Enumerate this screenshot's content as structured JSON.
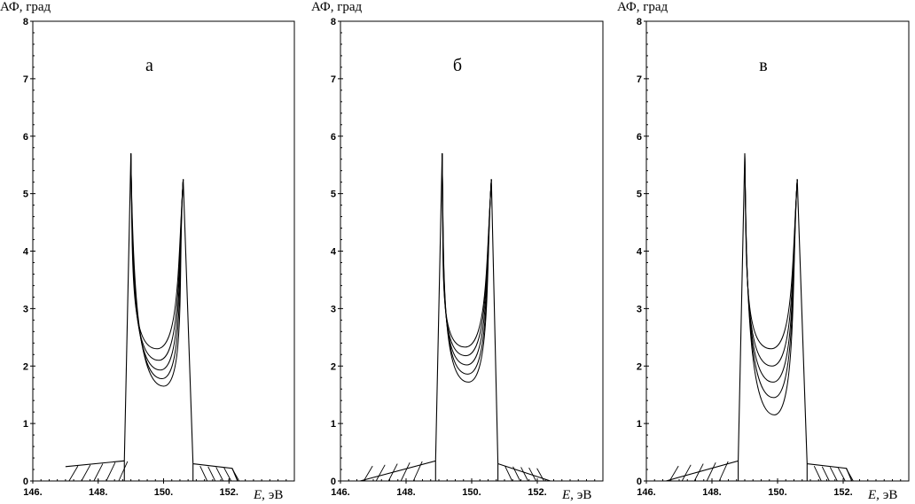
{
  "chart_data": [
    {
      "type": "line",
      "panel_label": "а",
      "ylabel": "АФ,  град",
      "xlabel_var": "E,",
      "xlabel_unit": "эВ",
      "xlim": [
        146.0,
        154.0
      ],
      "ylim": [
        0,
        8
      ],
      "xticks": [
        146,
        148,
        150,
        152
      ],
      "xtick_labels": [
        "146.",
        "148.",
        "150.",
        "152."
      ],
      "yticks": [
        0,
        1,
        2,
        3,
        4,
        5,
        6,
        7,
        8
      ],
      "ytick_labels": [
        "0",
        "1",
        "2",
        "3",
        "4",
        "5",
        "6",
        "7",
        "8"
      ],
      "peak1": {
        "x": 149.0,
        "y": 5.7
      },
      "peak2": {
        "x": 150.6,
        "y": 5.25
      },
      "left_edge": {
        "x": 148.8,
        "y": 0.35
      },
      "right_edge": {
        "x": 150.9,
        "y": 0.3
      },
      "left_tail_start": {
        "x": 147.0,
        "y": 0.25
      },
      "right_tail_end": {
        "x": 152.1,
        "y": 0.22
      },
      "curve_minima": [
        {
          "x": 149.8,
          "y": 2.3
        },
        {
          "x": 149.85,
          "y": 2.1
        },
        {
          "x": 149.9,
          "y": 1.93
        },
        {
          "x": 149.95,
          "y": 1.78
        },
        {
          "x": 150.0,
          "y": 1.65
        }
      ]
    },
    {
      "type": "line",
      "panel_label": "б",
      "ylabel": "АФ,  град",
      "xlabel_var": "E,",
      "xlabel_unit": "эВ",
      "xlim": [
        146.0,
        154.0
      ],
      "ylim": [
        0,
        8
      ],
      "xticks": [
        146,
        148,
        150,
        152
      ],
      "xtick_labels": [
        "146.",
        "148.",
        "150.",
        "152."
      ],
      "yticks": [
        0,
        1,
        2,
        3,
        4,
        5,
        6,
        7,
        8
      ],
      "ytick_labels": [
        "0",
        "1",
        "2",
        "3",
        "4",
        "5",
        "6",
        "7",
        "8"
      ],
      "peak1": {
        "x": 149.1,
        "y": 5.7
      },
      "peak2": {
        "x": 150.6,
        "y": 5.25
      },
      "left_edge": {
        "x": 148.9,
        "y": 0.35
      },
      "right_edge": {
        "x": 150.8,
        "y": 0.3
      },
      "left_tail_start": {
        "x": 146.6,
        "y": 0.0
      },
      "right_tail_end": {
        "x": 152.4,
        "y": 0.0
      },
      "curve_minima": [
        {
          "x": 149.8,
          "y": 2.33
        },
        {
          "x": 149.82,
          "y": 2.18
        },
        {
          "x": 149.85,
          "y": 2.02
        },
        {
          "x": 149.88,
          "y": 1.86
        },
        {
          "x": 149.9,
          "y": 1.72
        }
      ]
    },
    {
      "type": "line",
      "panel_label": "в",
      "ylabel": "АФ,  град",
      "xlabel_var": "E,",
      "xlabel_unit": "эВ",
      "xlim": [
        146.0,
        154.0
      ],
      "ylim": [
        0,
        8
      ],
      "xticks": [
        146,
        148,
        150,
        152
      ],
      "xtick_labels": [
        "146.",
        "148.",
        "150.",
        "152."
      ],
      "yticks": [
        0,
        1,
        2,
        3,
        4,
        5,
        6,
        7,
        8
      ],
      "ytick_labels": [
        "0",
        "1",
        "2",
        "3",
        "4",
        "5",
        "6",
        "7",
        "8"
      ],
      "peak1": {
        "x": 149.0,
        "y": 5.7
      },
      "peak2": {
        "x": 150.6,
        "y": 5.25
      },
      "left_edge": {
        "x": 148.8,
        "y": 0.35
      },
      "right_edge": {
        "x": 150.9,
        "y": 0.3
      },
      "left_tail_start": {
        "x": 146.6,
        "y": 0.0
      },
      "right_tail_end": {
        "x": 152.1,
        "y": 0.22
      },
      "curve_minima": [
        {
          "x": 149.8,
          "y": 2.3
        },
        {
          "x": 149.83,
          "y": 2.0
        },
        {
          "x": 149.86,
          "y": 1.72
        },
        {
          "x": 149.88,
          "y": 1.45
        },
        {
          "x": 149.9,
          "y": 1.15
        }
      ]
    }
  ]
}
